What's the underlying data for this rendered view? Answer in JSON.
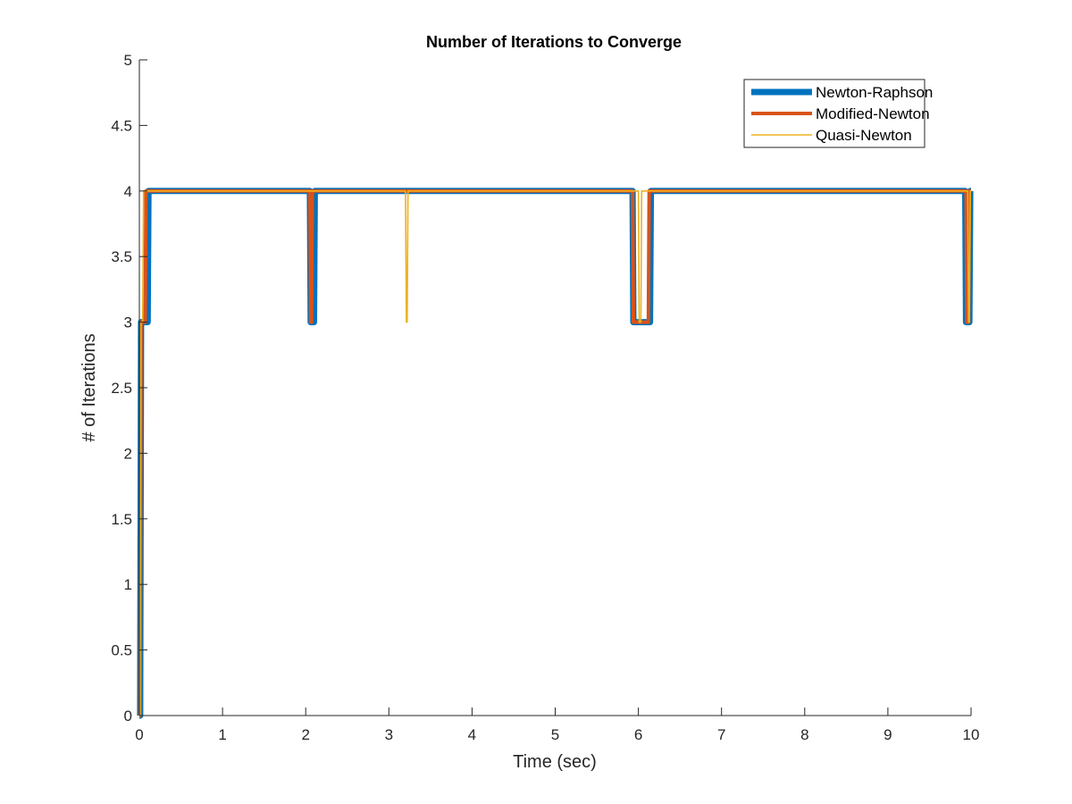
{
  "chart_data": {
    "type": "line",
    "title": "Number of Iterations to Converge",
    "xlabel": "Time (sec)",
    "ylabel": "# of Iterations",
    "xlim": [
      0,
      10
    ],
    "ylim": [
      0,
      5
    ],
    "xticks": [
      "0",
      "1",
      "2",
      "3",
      "4",
      "5",
      "6",
      "7",
      "8",
      "9",
      "10"
    ],
    "yticks": [
      "0",
      "0.5",
      "1",
      "1.5",
      "2",
      "2.5",
      "3",
      "3.5",
      "4",
      "4.5",
      "5"
    ],
    "grid": false,
    "legend_position": "top-right",
    "series": [
      {
        "name": "Newton-Raphson",
        "color": "#0072BD",
        "line_width": "thick",
        "x": [
          0,
          0.01,
          0.02,
          0.1,
          0.11,
          2.05,
          2.06,
          2.1,
          2.11,
          5.93,
          5.94,
          6.14,
          6.15,
          9.93,
          9.94,
          9.98,
          9.99,
          10
        ],
        "y": [
          0,
          0,
          3,
          3,
          4,
          4,
          3,
          3,
          4,
          4,
          3,
          3,
          4,
          4,
          3,
          3,
          4,
          4
        ]
      },
      {
        "name": "Modified-Newton",
        "color": "#D95319",
        "line_width": "medium",
        "x": [
          0,
          0.01,
          0.02,
          0.07,
          0.08,
          2.05,
          2.06,
          2.07,
          2.08,
          5.93,
          5.94,
          6.12,
          6.13,
          9.94,
          9.95,
          9.97,
          9.98,
          10
        ],
        "y": [
          0,
          0,
          3,
          3,
          4,
          4,
          3,
          3,
          4,
          4,
          3,
          3,
          4,
          4,
          3,
          3,
          4,
          4
        ]
      },
      {
        "name": "Quasi-Newton",
        "color": "#EDB120",
        "line_width": "thin",
        "x": [
          0,
          0.01,
          0.02,
          0.04,
          0.05,
          3.2,
          3.21,
          3.22,
          3.23,
          6.0,
          6.01,
          6.03,
          6.04,
          9.96,
          9.97,
          9.98,
          9.99,
          10
        ],
        "y": [
          0,
          0,
          3,
          3,
          4,
          4,
          3,
          3,
          4,
          4,
          3,
          3,
          4,
          4,
          3,
          3,
          4,
          4
        ]
      }
    ]
  }
}
